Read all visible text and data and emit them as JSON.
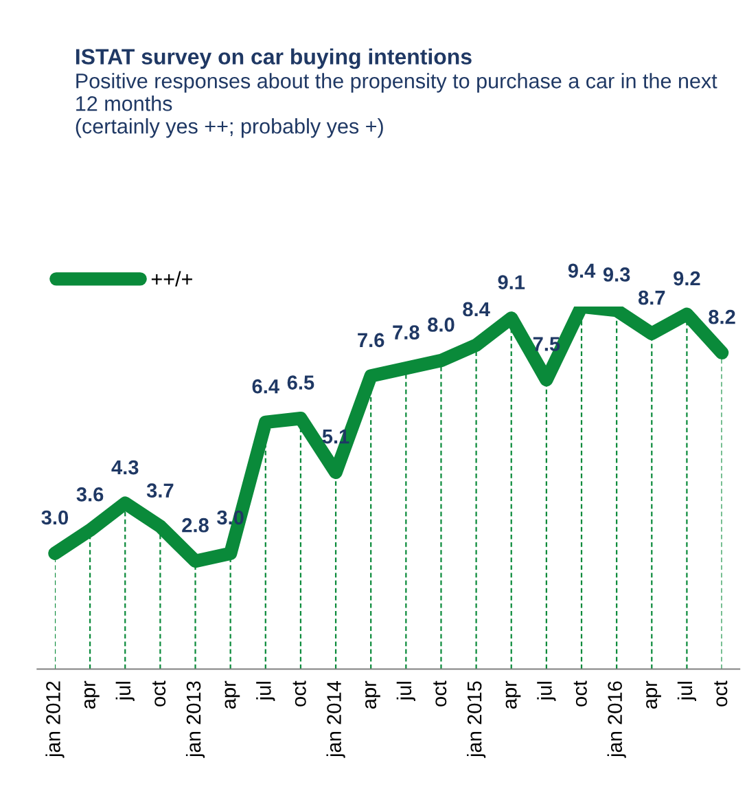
{
  "chart_data": {
    "type": "line",
    "title": "ISTAT survey on car buying intentions",
    "subtitle": "Positive responses about the propensity to purchase a car in the next 12 months\n(certainly yes ++; probably yes +)",
    "categories": [
      "jan 2012",
      "apr",
      "jul",
      "oct",
      "jan 2013",
      "apr",
      "jul",
      "oct",
      "jan 2014",
      "apr",
      "jul",
      "oct",
      "jan 2015",
      "apr",
      "jul",
      "oct",
      "jan 2016",
      "apr",
      "jul",
      "oct"
    ],
    "series": [
      {
        "name": "++/+",
        "color": "#0a8a3a",
        "values": [
          3.0,
          3.6,
          4.3,
          3.7,
          2.8,
          3.0,
          6.4,
          6.5,
          5.1,
          7.6,
          7.8,
          8.0,
          8.4,
          9.1,
          7.5,
          9.4,
          9.3,
          8.7,
          9.2,
          8.2
        ],
        "value_labels": [
          "3.0",
          "3.6",
          "4.3",
          "3.7",
          "2.8",
          "3.0",
          "6.4",
          "6.5",
          "5.1",
          "7.6",
          "7.8",
          "8.0",
          "8.4",
          "9.1",
          "7.5",
          "9.4",
          "9.3",
          "8.7",
          "9.2",
          "8.2"
        ]
      }
    ],
    "legend": "top left",
    "grid": "x",
    "tick_labels": "x",
    "marker": "none",
    "line_style": "solid"
  }
}
